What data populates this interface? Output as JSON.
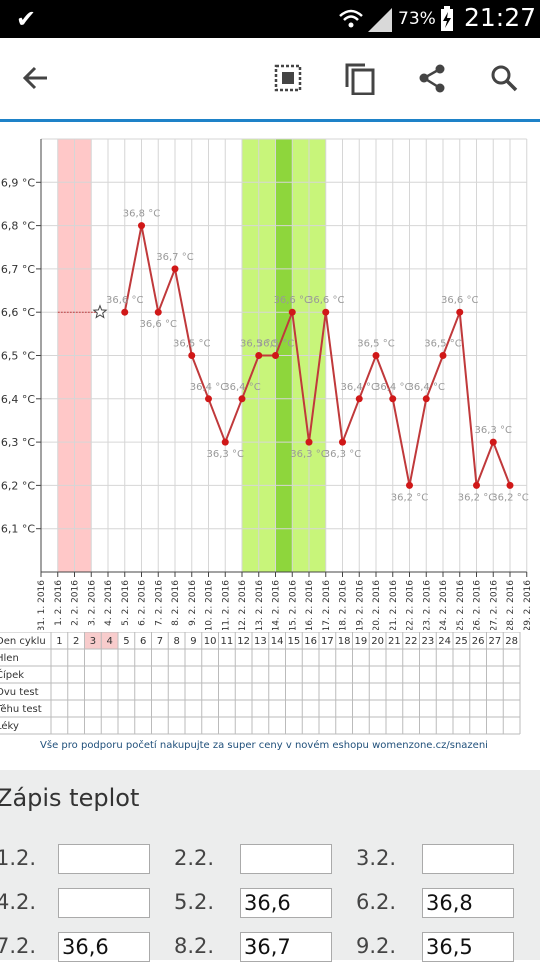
{
  "status": {
    "battery": "73%",
    "time": "21:27"
  },
  "toolbar": {
    "icons": [
      "back-arrow-icon",
      "select-all-icon",
      "copy-icon",
      "share-icon",
      "search-icon"
    ]
  },
  "chart_data": {
    "type": "line",
    "x": [
      "31. 1. 2016",
      "1. 2. 2016",
      "2. 2. 2016",
      "3. 2. 2016",
      "4. 2. 2016",
      "5. 2. 2016",
      "6. 2. 2016",
      "7. 2. 2016",
      "8. 2. 2016",
      "9. 2. 2016",
      "10. 2. 2016",
      "11. 2. 2016",
      "12. 2. 2016",
      "13. 2. 2016",
      "14. 2. 2016",
      "15. 2. 2016",
      "16. 2. 2016",
      "17. 2. 2016",
      "18. 2. 2016",
      "19. 2. 2016",
      "20. 2. 2016",
      "21. 2. 2016",
      "22. 2. 2016",
      "23. 2. 2016",
      "24. 2. 2016",
      "25. 2. 2016",
      "26. 2. 2016",
      "27. 2. 2016",
      "28. 2. 2016",
      "29. 2. 2016"
    ],
    "y_ticks": [
      "36,9 °C",
      "36,8 °C",
      "36,7 °C",
      "36,6 °C",
      "36,5 °C",
      "36,4 °C",
      "36,3 °C",
      "36,2 °C",
      "36,1 °C"
    ],
    "ylim": [
      36.0,
      37.0
    ],
    "points": [
      {
        "day": 5,
        "v": 36.6,
        "label": "36,6 °C"
      },
      {
        "day": 6,
        "v": 36.8,
        "label": "36,8 °C"
      },
      {
        "day": 7,
        "v": 36.6,
        "label": "36,6 °C"
      },
      {
        "day": 8,
        "v": 36.7,
        "label": "36,7 °C"
      },
      {
        "day": 9,
        "v": 36.5,
        "label": "36,5 °C"
      },
      {
        "day": 10,
        "v": 36.4,
        "label": "36,4 °C"
      },
      {
        "day": 11,
        "v": 36.3,
        "label": "36,3 °C"
      },
      {
        "day": 12,
        "v": 36.4,
        "label": "36,4 °C"
      },
      {
        "day": 13,
        "v": 36.5,
        "label": "36,5 °C"
      },
      {
        "day": 14,
        "v": 36.5,
        "label": "36,5 °C"
      },
      {
        "day": 15,
        "v": 36.6,
        "label": "36,6 °C"
      },
      {
        "day": 16,
        "v": 36.3,
        "label": "36,3 °C"
      },
      {
        "day": 17,
        "v": 36.6,
        "label": "36,6 °C"
      },
      {
        "day": 18,
        "v": 36.3,
        "label": "36,3 °C"
      },
      {
        "day": 19,
        "v": 36.4,
        "label": "36,4 °C"
      },
      {
        "day": 20,
        "v": 36.5,
        "label": "36,5 °C"
      },
      {
        "day": 21,
        "v": 36.4,
        "label": "36,4 °C"
      },
      {
        "day": 22,
        "v": 36.2,
        "label": "36,2 °C"
      },
      {
        "day": 23,
        "v": 36.4,
        "label": "36,4 °C"
      },
      {
        "day": 24,
        "v": 36.5,
        "label": "36,5 °C"
      },
      {
        "day": 25,
        "v": 36.6,
        "label": "36,6 °C"
      },
      {
        "day": 26,
        "v": 36.2,
        "label": "36,2 °C"
      },
      {
        "day": 27,
        "v": 36.3,
        "label": "36,3 °C"
      },
      {
        "day": 28,
        "v": 36.2,
        "label": "36,2 °C"
      }
    ],
    "baseline": {
      "v": 36.6,
      "from": 1,
      "to": 4
    },
    "menstruation": {
      "from": 1,
      "to": 2,
      "color": "#ffc8c8"
    },
    "fertile": {
      "from": 12,
      "to": 16,
      "color": "#c8f57a"
    },
    "ovulation": {
      "from": 14,
      "to": 14,
      "color": "#8ed63c"
    },
    "line_color": "#c0393b"
  },
  "cycle_table": {
    "rows": [
      "Den cyklu",
      "Hlen",
      "Čípek",
      "Ovu test",
      "Těhu test",
      "Léky"
    ],
    "days": [
      "1",
      "2",
      "3",
      "4",
      "5",
      "6",
      "7",
      "8",
      "9",
      "10",
      "11",
      "12",
      "13",
      "14",
      "15",
      "16",
      "17",
      "18",
      "19",
      "20",
      "21",
      "22",
      "23",
      "24",
      "25",
      "26",
      "27",
      "28"
    ],
    "highlight_days": [
      3,
      4
    ]
  },
  "promo": "Vše pro podporu početí nakupujte za super ceny v novém eshopu womenzone.cz/snazeni",
  "form": {
    "title": "Zápis teplot",
    "rows": [
      [
        {
          "label": "1.2.",
          "value": ""
        },
        {
          "label": "2.2.",
          "value": ""
        },
        {
          "label": "3.2.",
          "value": ""
        }
      ],
      [
        {
          "label": "4.2.",
          "value": ""
        },
        {
          "label": "5.2.",
          "value": "36,6"
        },
        {
          "label": "6.2.",
          "value": "36,8"
        }
      ],
      [
        {
          "label": "7.2.",
          "value": "36,6"
        },
        {
          "label": "8.2.",
          "value": "36,7"
        },
        {
          "label": "9.2.",
          "value": "36,5"
        }
      ]
    ]
  }
}
